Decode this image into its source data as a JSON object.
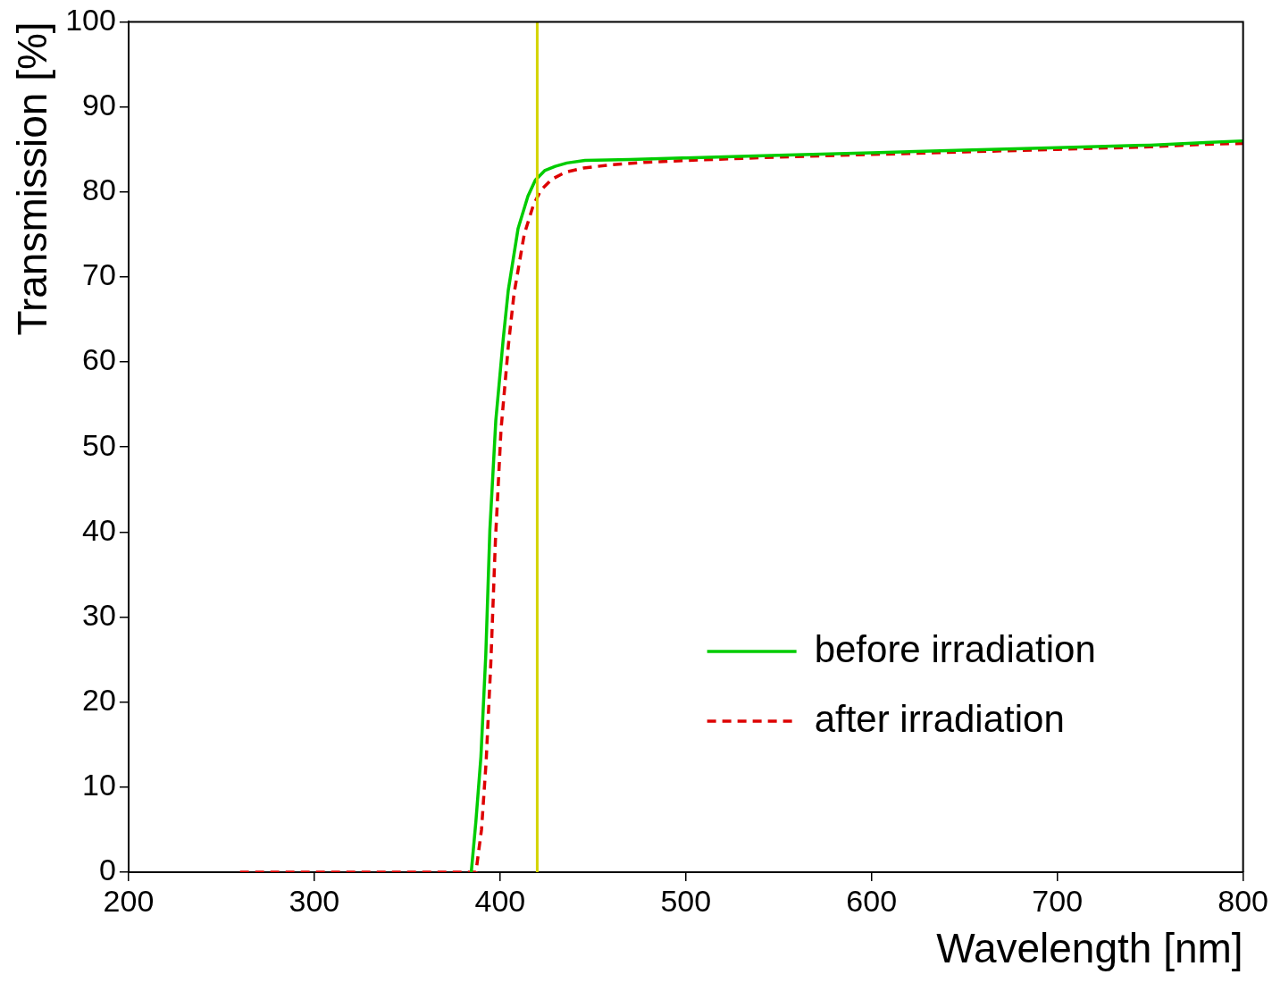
{
  "chart_data": {
    "type": "line",
    "xlabel": "Wavelength [nm]",
    "ylabel": "Transmission [%]",
    "xlim": [
      200,
      800
    ],
    "ylim": [
      0,
      100
    ],
    "xticks": [
      200,
      300,
      400,
      500,
      600,
      700,
      800
    ],
    "yticks": [
      0,
      10,
      20,
      30,
      40,
      50,
      60,
      70,
      80,
      90,
      100
    ],
    "grid": false,
    "legend": "bottom right",
    "marker": "none",
    "series": [
      {
        "name": "before irradiation",
        "color": "#00cc00",
        "line_style": "solid",
        "x": [
          384.5,
          387,
          389.7,
          392.3,
          394.5,
          397.7,
          401.7,
          404.4,
          409.7,
          415,
          419,
          424,
          429.7,
          436,
          445.7,
          470,
          500,
          550,
          600,
          650,
          700,
          750,
          780,
          800
        ],
        "values": [
          0,
          6,
          13.6,
          25.5,
          40.2,
          53.1,
          62.7,
          68.4,
          75.7,
          79.5,
          81.4,
          82.5,
          83,
          83.4,
          83.7,
          83.8,
          84,
          84.3,
          84.6,
          84.9,
          85.2,
          85.5,
          85.8,
          86
        ]
      },
      {
        "name": "after irradiation",
        "color": "#dd0000",
        "line_style": "dashed",
        "x": [
          260,
          300,
          340,
          370,
          387,
          390,
          392.5,
          395,
          397.5,
          400.5,
          404.5,
          407.5,
          413,
          418,
          422,
          428,
          435,
          445,
          460,
          480,
          500,
          550,
          600,
          650,
          700,
          750,
          780,
          800
        ],
        "values": [
          0,
          0,
          0,
          0,
          0,
          5,
          13,
          24.5,
          39,
          52,
          62,
          68,
          75,
          78.5,
          80.2,
          81.5,
          82.3,
          82.8,
          83.2,
          83.5,
          83.7,
          84.1,
          84.4,
          84.7,
          85,
          85.3,
          85.6,
          85.7
        ]
      }
    ],
    "ref_lines": [
      {
        "axis": "x",
        "value": 420,
        "color": "#d4d400"
      }
    ]
  }
}
